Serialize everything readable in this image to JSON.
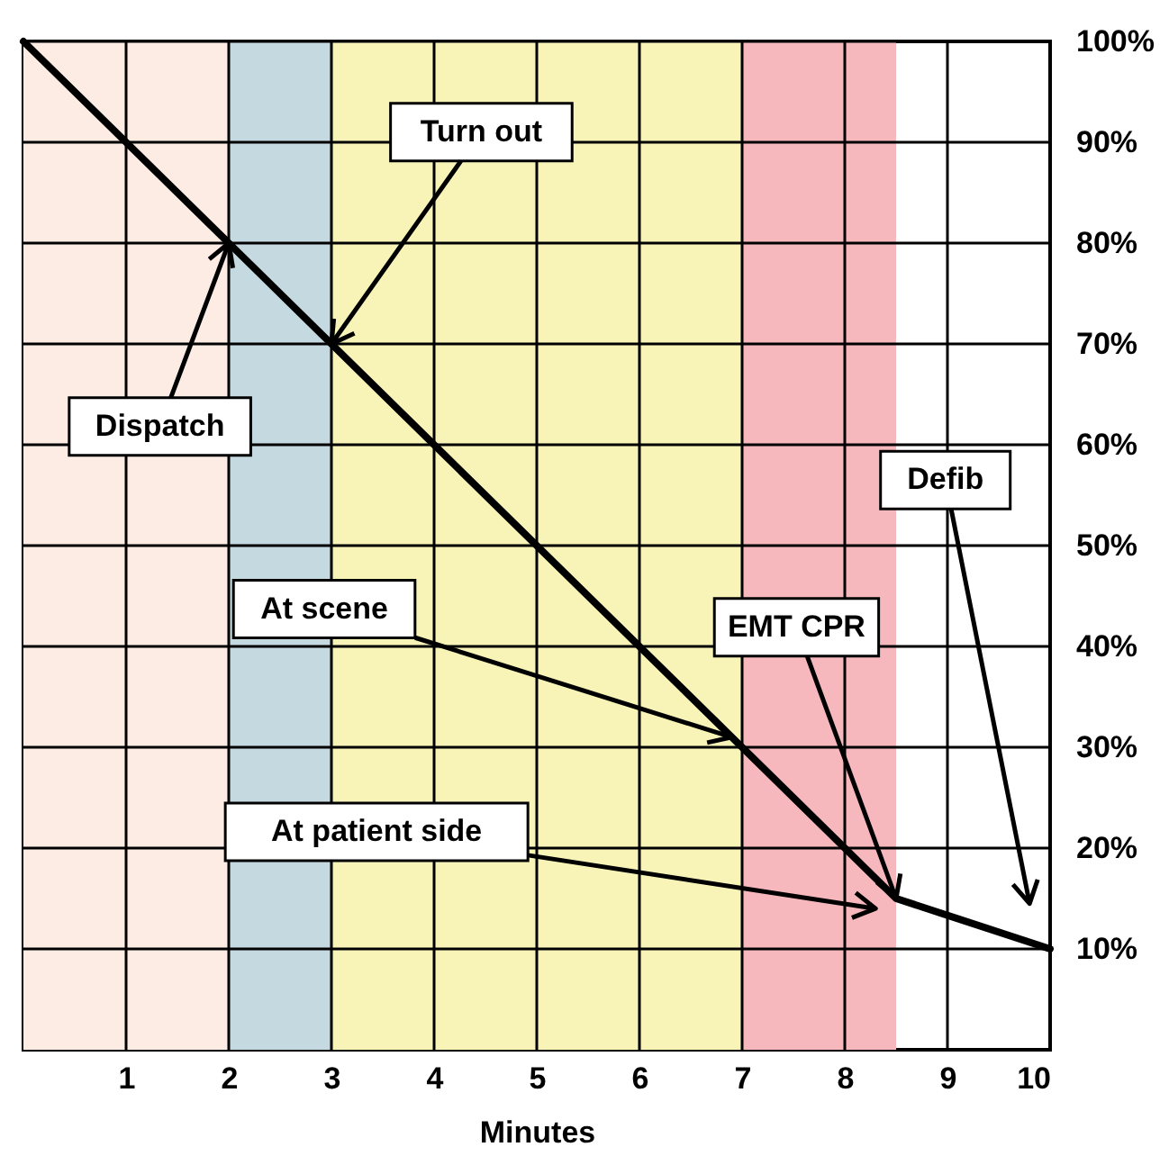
{
  "chart_data": {
    "type": "line",
    "xlabel": "Minutes",
    "xlim": [
      0,
      10
    ],
    "xticks": [
      1,
      2,
      3,
      4,
      5,
      6,
      7,
      8,
      9,
      10
    ],
    "ylim": [
      0,
      100
    ],
    "yticks": [
      {
        "value": 10,
        "label": "10%"
      },
      {
        "value": 20,
        "label": "20%"
      },
      {
        "value": 30,
        "label": "30%"
      },
      {
        "value": 40,
        "label": "40%"
      },
      {
        "value": 50,
        "label": "50%"
      },
      {
        "value": 60,
        "label": "60%"
      },
      {
        "value": 70,
        "label": "70%"
      },
      {
        "value": 80,
        "label": "80%"
      },
      {
        "value": 90,
        "label": "90%"
      },
      {
        "value": 100,
        "label": "100%"
      }
    ],
    "grid": true,
    "marker": "none",
    "line_style": "solid",
    "series": [
      {
        "color": "#000000",
        "x": [
          0,
          8.5,
          10
        ],
        "values": [
          100,
          15,
          10
        ]
      }
    ],
    "bands": [
      {
        "axis": "x",
        "from": 0,
        "to": 2,
        "color": "#fdece4"
      },
      {
        "axis": "x",
        "from": 2,
        "to": 3,
        "color": "#c5d9e0"
      },
      {
        "axis": "x",
        "from": 3,
        "to": 7,
        "color": "#f8f4b8"
      },
      {
        "axis": "x",
        "from": 7,
        "to": 8.5,
        "color": "#f6b8bc"
      }
    ],
    "annotations": [
      {
        "text": "Turn out",
        "x": 3,
        "y": 70
      },
      {
        "text": "Dispatch",
        "x": 2,
        "y": 80
      },
      {
        "text": "At scene",
        "x": 6.9,
        "y": 31
      },
      "At patient side",
      {
        "text": "EMT CPR",
        "x": 8.5,
        "y": 15
      },
      "Defib"
    ]
  }
}
